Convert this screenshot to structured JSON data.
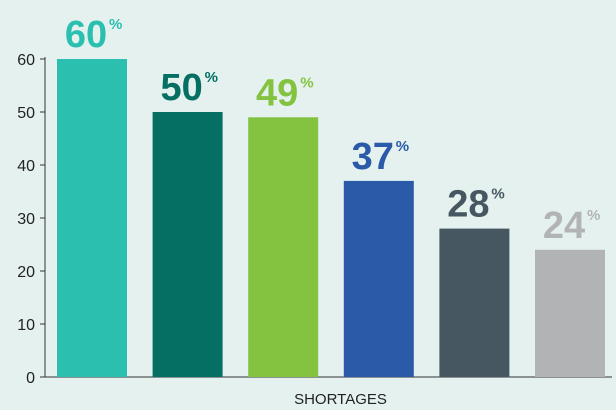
{
  "chart_data": {
    "type": "bar",
    "categories": [
      "",
      "",
      "",
      "",
      "",
      ""
    ],
    "values": [
      60,
      50,
      49,
      37,
      28,
      24
    ],
    "value_labels": [
      "60",
      "50",
      "49",
      "37",
      "28",
      "24"
    ],
    "value_suffix": "%",
    "colors": [
      "#2bbfaf",
      "#046f62",
      "#83c340",
      "#2a5aa8",
      "#475762",
      "#b2b3b5"
    ],
    "title": "",
    "xlabel": "SHORTAGES",
    "ylabel": "",
    "ylim": [
      0,
      60
    ],
    "yticks": [
      0,
      10,
      20,
      30,
      40,
      50,
      60
    ],
    "grid": false,
    "legend": "none"
  }
}
